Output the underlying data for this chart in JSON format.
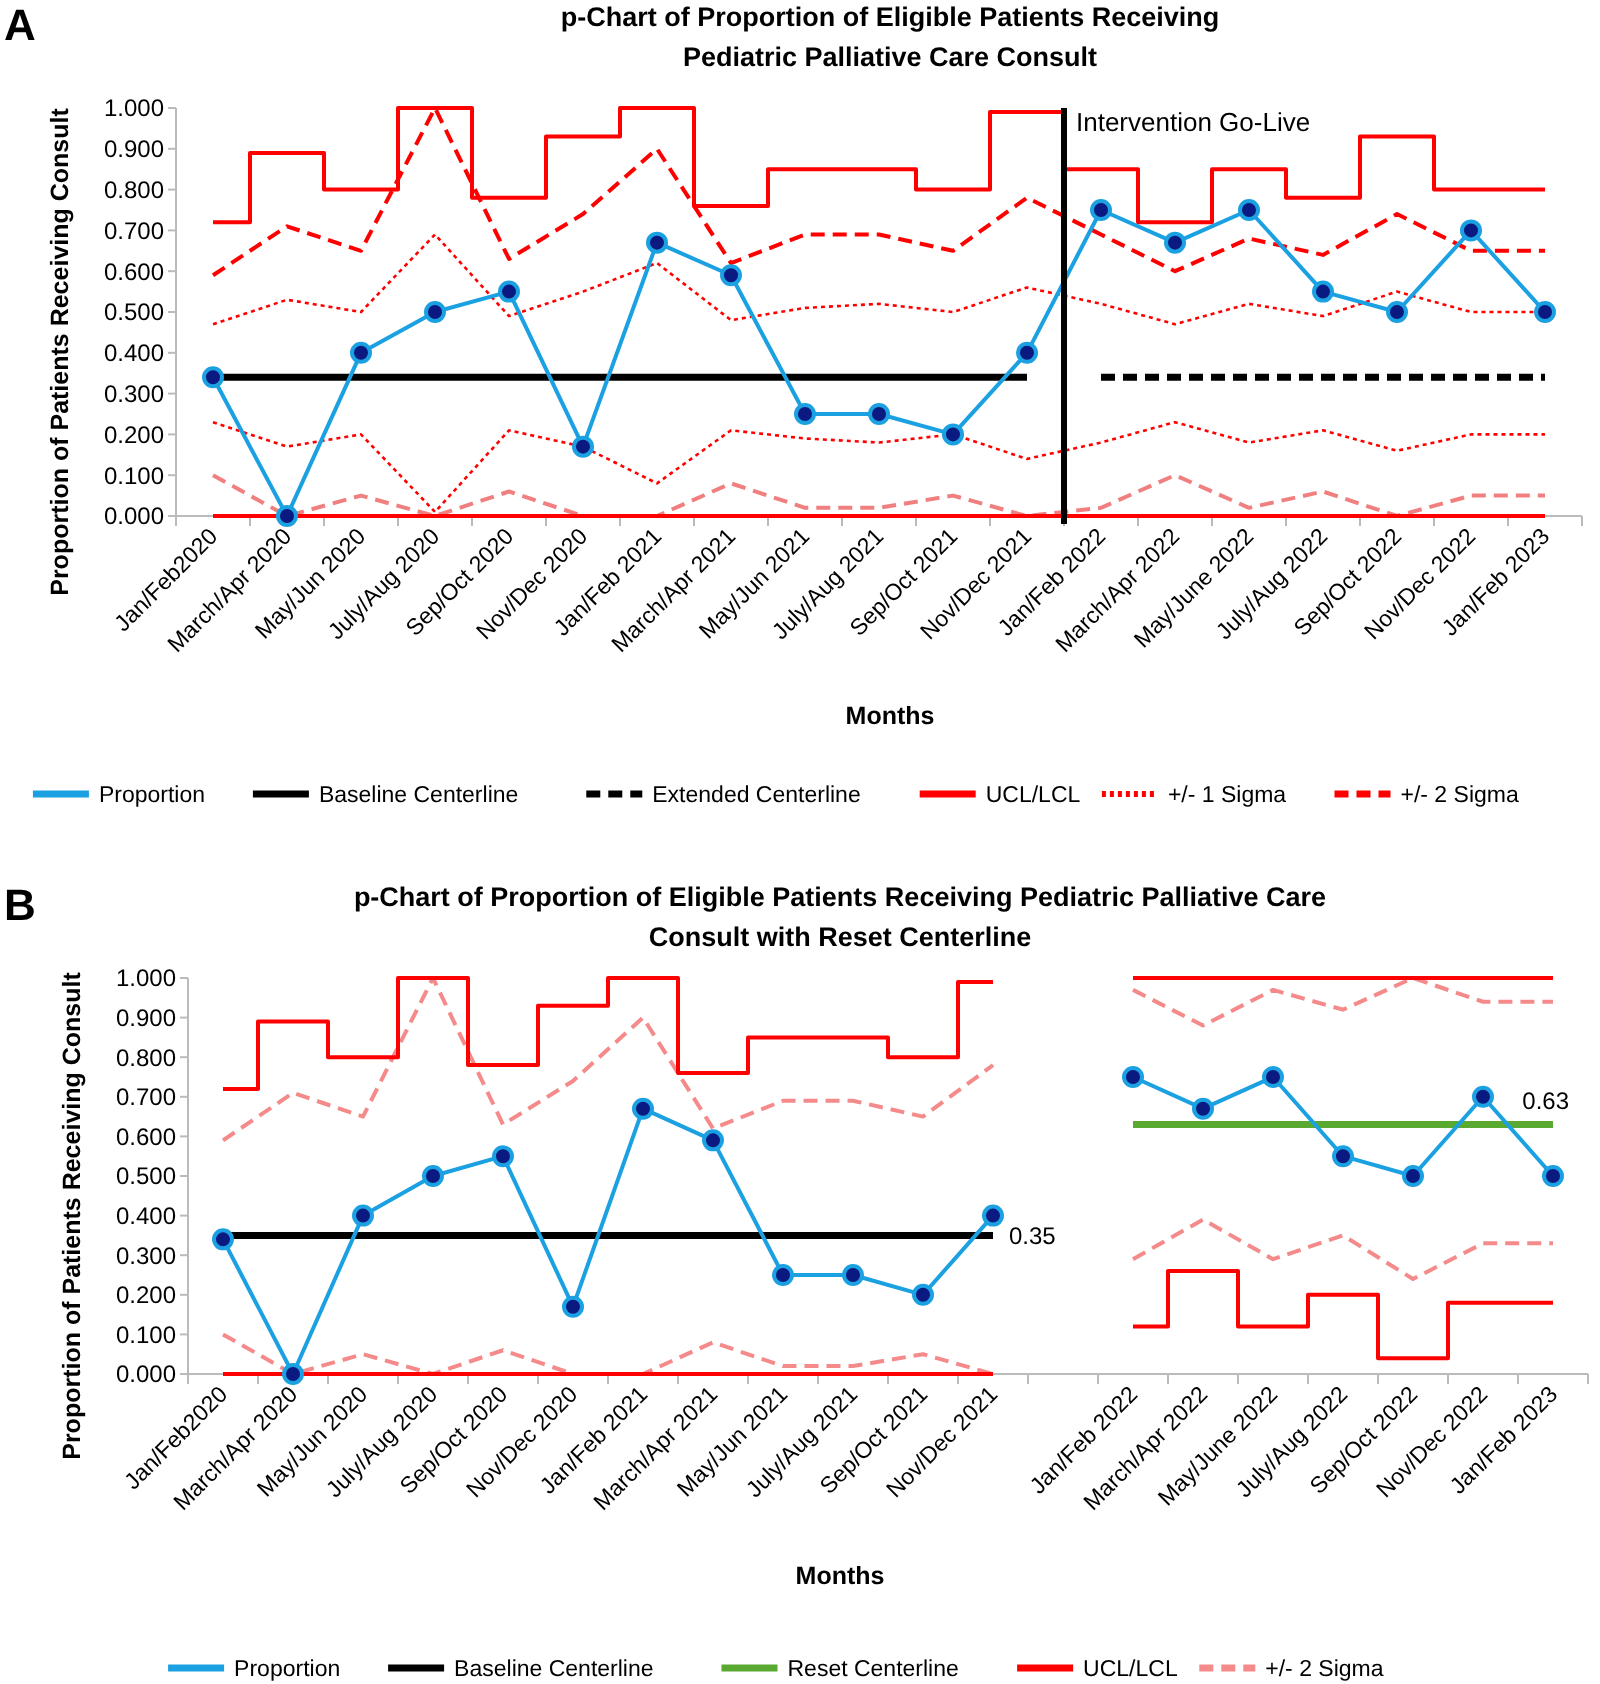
{
  "chart_data": [
    {
      "type": "line",
      "title": "p-Chart of Proportion of Eligible Patients Receiving Pediatric Palliative Care Consult",
      "xlabel": "Months",
      "ylabel": "Proportion of Patients Receiving Consult",
      "annotations": [
        "A"
      ],
      "legend": "bottom",
      "categories": [
        "Jan/Feb2020",
        "March/Apr 2020",
        "May/Jun 2020",
        "July/Aug 2020",
        "Sep/Oct 2020",
        "Nov/Dec 2020",
        "Jan/Feb 2021",
        "March/Apr 2021",
        "May/Jun 2021",
        "July/Aug 2021",
        "Sep/Oct 2021",
        "Nov/Dec 2021",
        "Jan/Feb 2022",
        "March/Apr 2022",
        "May/June 2022",
        "July/Aug 2022",
        "Sep/Oct 2022",
        "Nov/Dec 2022",
        "Jan/Feb 2023"
      ],
      "ylim": [
        0,
        1
      ],
      "yticks": [
        {
          "value": 0,
          "label": "0.000"
        },
        {
          "value": 0.1,
          "label": "0.100"
        },
        {
          "value": 0.2,
          "label": "0.200"
        },
        {
          "value": 0.3,
          "label": "0.300"
        },
        {
          "value": 0.4,
          "label": "0.400"
        },
        {
          "value": 0.5,
          "label": "0.500"
        },
        {
          "value": 0.6,
          "label": "0.600"
        },
        {
          "value": 0.7,
          "label": "0.700"
        },
        {
          "value": 0.8,
          "label": "0.800"
        },
        {
          "value": 0.9,
          "label": "0.900"
        },
        {
          "value": 1,
          "label": "1.000"
        }
      ],
      "ref_lines": [
        {
          "axis": "x",
          "value": "Jan/Feb 2022",
          "label": "Intervention Go-Live",
          "color": "#000000"
        }
      ],
      "series": [
        {
          "name": "Proportion",
          "color": "#1ba1e2",
          "line_style": "solid",
          "marker": "circle",
          "values": [
            0.34,
            0,
            0.4,
            0.5,
            0.55,
            0.17,
            0.67,
            0.59,
            0.25,
            0.25,
            0.2,
            0.4,
            0.75,
            0.67,
            0.75,
            0.55,
            0.5,
            0.7,
            0.5
          ]
        },
        {
          "name": "Baseline Centerline",
          "color": "#000000",
          "line_style": "solid",
          "values": [
            0.34,
            0.34,
            0.34,
            0.34,
            0.34,
            0.34,
            0.34,
            0.34,
            0.34,
            0.34,
            0.34,
            0.34,
            null,
            null,
            null,
            null,
            null,
            null,
            null
          ]
        },
        {
          "name": "Extended Centerline",
          "color": "#000000",
          "line_style": "dashed",
          "values": [
            null,
            null,
            null,
            null,
            null,
            null,
            null,
            null,
            null,
            null,
            null,
            null,
            0.34,
            0.34,
            0.34,
            0.34,
            0.34,
            0.34,
            0.34
          ]
        },
        {
          "name": "UCL/LCL",
          "type": "step",
          "color": "#ff0000",
          "line_style": "solid",
          "values": [
            0.72,
            0.89,
            0.8,
            1.0,
            0.78,
            0.93,
            1.0,
            0.76,
            0.85,
            0.85,
            0.8,
            0.99,
            0.85,
            0.72,
            0.85,
            0.78,
            0.93,
            0.8,
            0.8
          ]
        },
        {
          "type": "step",
          "color": "#ff0000",
          "line_style": "solid",
          "values": [
            0,
            0,
            0,
            0,
            0,
            0,
            0,
            0,
            0,
            0,
            0,
            0,
            0,
            0,
            0,
            0,
            0,
            0,
            0
          ]
        },
        {
          "name": "+/- 1 Sigma",
          "color": "#ff0000",
          "line_style": "dotted",
          "values": [
            0.47,
            0.53,
            0.5,
            0.69,
            0.49,
            0.55,
            0.62,
            0.48,
            0.51,
            0.52,
            0.5,
            0.56,
            0.52,
            0.47,
            0.52,
            0.49,
            0.55,
            0.5,
            0.5
          ]
        },
        {
          "color": "#ff0000",
          "line_style": "dotted",
          "values": [
            0.23,
            0.17,
            0.2,
            0.01,
            0.21,
            0.17,
            0.08,
            0.21,
            0.19,
            0.18,
            0.2,
            0.14,
            0.18,
            0.23,
            0.18,
            0.21,
            0.16,
            0.2,
            0.2
          ]
        },
        {
          "name": "+/- 2 Sigma",
          "color": "#ff0000",
          "line_style": "dashed",
          "values": [
            0.59,
            0.71,
            0.65,
            1.0,
            0.63,
            0.74,
            0.9,
            0.62,
            0.69,
            0.69,
            0.65,
            0.78,
            0.69,
            0.6,
            0.68,
            0.64,
            0.74,
            0.65,
            0.65
          ]
        },
        {
          "color": "#f08080",
          "line_style": "dashed",
          "values": [
            0.1,
            0,
            0.05,
            0,
            0.06,
            0,
            0,
            0.08,
            0.02,
            0.02,
            0.05,
            0,
            0.02,
            0.1,
            0.02,
            0.06,
            0,
            0.05,
            0.05
          ]
        }
      ]
    },
    {
      "type": "line",
      "title": "p-Chart of Proportion of Eligible Patients Receiving Pediatric Palliative Care Consult with Reset Centerline",
      "xlabel": "Months",
      "ylabel": "Proportion of Patients Receiving Consult",
      "annotations": [
        "B"
      ],
      "legend": "bottom",
      "categories": [
        "Jan/Feb2020",
        "March/Apr 2020",
        "May/Jun 2020",
        "July/Aug 2020",
        "Sep/Oct 2020",
        "Nov/Dec 2020",
        "Jan/Feb 2021",
        "March/Apr 2021",
        "May/Jun 2021",
        "July/Aug 2021",
        "Sep/Oct 2021",
        "Nov/Dec 2021",
        null,
        "Jan/Feb 2022",
        "March/Apr 2022",
        "May/June 2022",
        "July/Aug 2022",
        "Sep/Oct 2022",
        "Nov/Dec 2022",
        "Jan/Feb 2023"
      ],
      "ylim": [
        0,
        1
      ],
      "yticks": [
        {
          "value": 0,
          "label": "0.000"
        },
        {
          "value": 0.1,
          "label": "0.100"
        },
        {
          "value": 0.2,
          "label": "0.200"
        },
        {
          "value": 0.3,
          "label": "0.300"
        },
        {
          "value": 0.4,
          "label": "0.400"
        },
        {
          "value": 0.5,
          "label": "0.500"
        },
        {
          "value": 0.6,
          "label": "0.600"
        },
        {
          "value": 0.7,
          "label": "0.700"
        },
        {
          "value": 0.8,
          "label": "0.800"
        },
        {
          "value": 0.9,
          "label": "0.900"
        },
        {
          "value": 1,
          "label": "1.000"
        }
      ],
      "series": [
        {
          "name": "Proportion",
          "color": "#1ba1e2",
          "line_style": "solid",
          "marker": "circle",
          "values": [
            0.34,
            0,
            0.4,
            0.5,
            0.55,
            0.17,
            0.67,
            0.59,
            0.25,
            0.25,
            0.2,
            0.4,
            null,
            0.75,
            0.67,
            0.75,
            0.55,
            0.5,
            0.7,
            0.5
          ]
        },
        {
          "name": "Baseline Centerline",
          "color": "#000000",
          "line_style": "solid",
          "values": [
            0.35,
            0.35,
            0.35,
            0.35,
            0.35,
            0.35,
            0.35,
            0.35,
            0.35,
            0.35,
            0.35,
            0.35,
            null,
            null,
            null,
            null,
            null,
            null,
            null,
            null
          ],
          "value_labels": [
            null,
            null,
            null,
            null,
            null,
            null,
            null,
            null,
            null,
            null,
            null,
            "0.35",
            null,
            null,
            null,
            null,
            null,
            null,
            null,
            null
          ]
        },
        {
          "name": "Reset Centerline",
          "color": "#5aaa32",
          "line_style": "solid",
          "values": [
            null,
            null,
            null,
            null,
            null,
            null,
            null,
            null,
            null,
            null,
            null,
            null,
            null,
            0.63,
            0.63,
            0.63,
            0.63,
            0.63,
            0.63,
            0.63
          ],
          "value_labels": [
            null,
            null,
            null,
            null,
            null,
            null,
            null,
            null,
            null,
            null,
            null,
            null,
            null,
            null,
            null,
            null,
            null,
            null,
            null,
            "0.63"
          ]
        },
        {
          "name": "UCL/LCL",
          "type": "step",
          "color": "#ff0000",
          "line_style": "solid",
          "values": [
            0.72,
            0.89,
            0.8,
            1.0,
            0.78,
            0.93,
            1.0,
            0.76,
            0.85,
            0.85,
            0.8,
            0.99,
            null,
            1.0,
            1.0,
            1.0,
            1.0,
            1.0,
            1.0,
            1.0
          ]
        },
        {
          "type": "step",
          "color": "#ff0000",
          "line_style": "solid",
          "values": [
            0,
            0,
            0,
            0,
            0,
            0,
            0,
            0,
            0,
            0,
            0,
            0,
            null,
            0.12,
            0.26,
            0.12,
            0.2,
            0.04,
            0.18,
            0.18
          ]
        },
        {
          "name": "+/- 2 Sigma",
          "color": "#f48a8a",
          "line_style": "dashed",
          "values": [
            0.59,
            0.71,
            0.65,
            1.0,
            0.63,
            0.74,
            0.9,
            0.62,
            0.69,
            0.69,
            0.65,
            0.78,
            null,
            0.97,
            0.88,
            0.97,
            0.92,
            1.0,
            0.94,
            0.94
          ]
        },
        {
          "color": "#f48a8a",
          "line_style": "dashed",
          "values": [
            0.1,
            0,
            0.05,
            0,
            0.06,
            0,
            0,
            0.08,
            0.02,
            0.02,
            0.05,
            0,
            null,
            0.29,
            0.39,
            0.29,
            0.35,
            0.24,
            0.33,
            0.33
          ]
        }
      ]
    }
  ]
}
